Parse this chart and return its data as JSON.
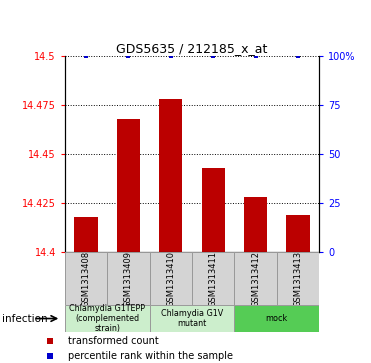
{
  "title": "GDS5635 / 212185_x_at",
  "samples": [
    "GSM1313408",
    "GSM1313409",
    "GSM1313410",
    "GSM1313411",
    "GSM1313412",
    "GSM1313413"
  ],
  "bar_values": [
    14.418,
    14.468,
    14.478,
    14.443,
    14.428,
    14.419
  ],
  "percentile_values": [
    100,
    100,
    100,
    100,
    100,
    100
  ],
  "bar_color": "#bb0000",
  "percentile_color": "#0000cc",
  "ylim_left": [
    14.4,
    14.5
  ],
  "ylim_right": [
    0,
    100
  ],
  "yticks_left": [
    14.4,
    14.425,
    14.45,
    14.475,
    14.5
  ],
  "yticks_right": [
    0,
    25,
    50,
    75,
    100
  ],
  "ytick_labels_left": [
    "14.4",
    "14.425",
    "14.45",
    "14.475",
    "14.5"
  ],
  "ytick_labels_right": [
    "0",
    "25",
    "50",
    "75",
    "100%"
  ],
  "groups": [
    {
      "label": "Chlamydia G1TEPP\n(complemented\nstrain)",
      "color": "#cceecc",
      "start": 0,
      "end": 2
    },
    {
      "label": "Chlamydia G1V\nmutant",
      "color": "#cceecc",
      "start": 2,
      "end": 4
    },
    {
      "label": "mock",
      "color": "#55cc55",
      "start": 4,
      "end": 6
    }
  ],
  "infection_label": "infection",
  "legend_entries": [
    {
      "color": "#bb0000",
      "marker": "s",
      "label": "transformed count"
    },
    {
      "color": "#0000cc",
      "marker": "s",
      "label": "percentile rank within the sample"
    }
  ],
  "bar_width": 0.55
}
